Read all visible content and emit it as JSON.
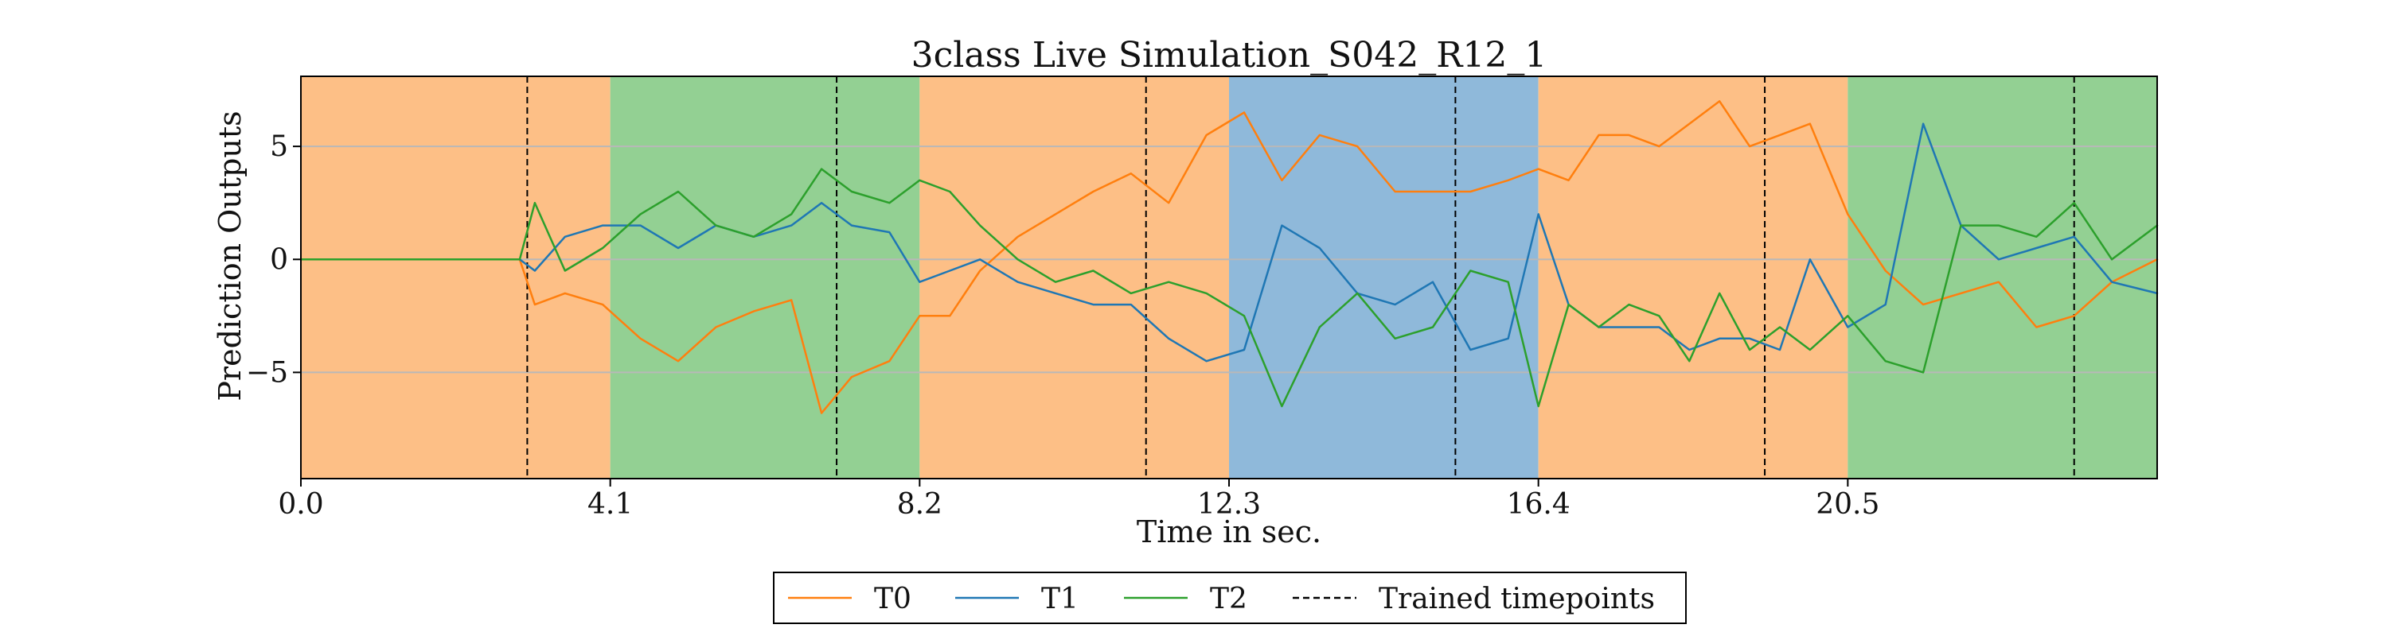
{
  "chart_data": {
    "type": "line",
    "title": "3class Live Simulation_S042_R12_1",
    "xlabel": "Time in sec.",
    "ylabel": "Prediction Outputs",
    "xlim": [
      0,
      24.6
    ],
    "ylim": [
      -9.7,
      8.1
    ],
    "xticks": [
      0.0,
      4.1,
      8.2,
      12.3,
      16.4,
      20.5
    ],
    "xtick_labels": [
      "0.0",
      "4.1",
      "8.2",
      "12.3",
      "16.4",
      "20.5"
    ],
    "yticks": [
      5,
      0,
      -5
    ],
    "ytick_labels": [
      "5",
      "0",
      "−5"
    ],
    "grid": "horizontal",
    "legend_position": "below",
    "class_regions": [
      {
        "start": 0.0,
        "end": 4.1,
        "class": "T0"
      },
      {
        "start": 4.1,
        "end": 8.2,
        "class": "T2"
      },
      {
        "start": 8.2,
        "end": 12.3,
        "class": "T0"
      },
      {
        "start": 12.3,
        "end": 16.4,
        "class": "T1"
      },
      {
        "start": 16.4,
        "end": 20.5,
        "class": "T0"
      },
      {
        "start": 20.5,
        "end": 24.6,
        "class": "T2"
      }
    ],
    "region_colors": {
      "T0": "#fdbf86",
      "T1": "#8fb9da",
      "T2": "#93d093"
    },
    "trained_timepoints": [
      3.0,
      7.1,
      11.2,
      15.3,
      19.4,
      23.5
    ],
    "x": [
      0.0,
      1.0,
      2.0,
      2.9,
      3.1,
      3.5,
      4.0,
      4.5,
      5.0,
      5.5,
      6.0,
      6.5,
      6.9,
      7.3,
      7.8,
      8.2,
      8.6,
      9.0,
      9.5,
      10.0,
      10.5,
      11.0,
      11.5,
      12.0,
      12.5,
      13.0,
      13.5,
      14.0,
      14.5,
      15.0,
      15.5,
      16.0,
      16.4,
      16.8,
      17.2,
      17.6,
      18.0,
      18.4,
      18.8,
      19.2,
      19.6,
      20.0,
      20.5,
      21.0,
      21.5,
      22.0,
      22.5,
      23.0,
      23.5,
      24.0,
      24.6
    ],
    "series": [
      {
        "name": "T0",
        "color": "#ff7f0e",
        "values": [
          0,
          0,
          0,
          0,
          -2.0,
          -1.5,
          -2.0,
          -3.5,
          -4.5,
          -3.0,
          -2.3,
          -1.8,
          -6.8,
          -5.2,
          -4.5,
          -2.5,
          -2.5,
          -0.5,
          1.0,
          2.0,
          3.0,
          3.8,
          2.5,
          5.5,
          6.5,
          3.5,
          5.5,
          5.0,
          3.0,
          3.0,
          3.0,
          3.5,
          4.0,
          3.5,
          5.5,
          5.5,
          5.0,
          6.0,
          7.0,
          5.0,
          5.5,
          6.0,
          2.0,
          -0.5,
          -2.0,
          -1.5,
          -1.0,
          -3.0,
          -2.5,
          -1.0,
          0
        ]
      },
      {
        "name": "T1",
        "color": "#1f77b4",
        "values": [
          0,
          0,
          0,
          0,
          -0.5,
          1.0,
          1.5,
          1.5,
          0.5,
          1.5,
          1.0,
          1.5,
          2.5,
          1.5,
          1.2,
          -1.0,
          -0.5,
          0,
          -1.0,
          -1.5,
          -2.0,
          -2.0,
          -3.5,
          -4.5,
          -4.0,
          1.5,
          0.5,
          -1.5,
          -2.0,
          -1.0,
          -4.0,
          -3.5,
          2.0,
          -2.0,
          -3.0,
          -3.0,
          -3.0,
          -4.0,
          -3.5,
          -3.5,
          -4.0,
          0,
          -3.0,
          -2.0,
          6.0,
          1.5,
          0,
          0.5,
          1.0,
          -1.0,
          -1.5
        ]
      },
      {
        "name": "T2",
        "color": "#2ca02c",
        "values": [
          0,
          0,
          0,
          0,
          2.5,
          -0.5,
          0.5,
          2.0,
          3.0,
          1.5,
          1.0,
          2.0,
          4.0,
          3.0,
          2.5,
          3.5,
          3.0,
          1.5,
          0,
          -1.0,
          -0.5,
          -1.5,
          -1.0,
          -1.5,
          -2.5,
          -6.5,
          -3.0,
          -1.5,
          -3.5,
          -3.0,
          -0.5,
          -1.0,
          -6.5,
          -2.0,
          -3.0,
          -2.0,
          -2.5,
          -4.5,
          -1.5,
          -4.0,
          -3.0,
          -4.0,
          -2.5,
          -4.5,
          -5.0,
          1.5,
          1.5,
          1.0,
          2.5,
          0,
          1.5
        ]
      }
    ],
    "legend": [
      {
        "label": "T0",
        "color": "#ff7f0e",
        "style": "solid"
      },
      {
        "label": "T1",
        "color": "#1f77b4",
        "style": "solid"
      },
      {
        "label": "T2",
        "color": "#2ca02c",
        "style": "solid"
      },
      {
        "label": "Trained timepoints",
        "color": "#000000",
        "style": "dashed"
      }
    ]
  }
}
